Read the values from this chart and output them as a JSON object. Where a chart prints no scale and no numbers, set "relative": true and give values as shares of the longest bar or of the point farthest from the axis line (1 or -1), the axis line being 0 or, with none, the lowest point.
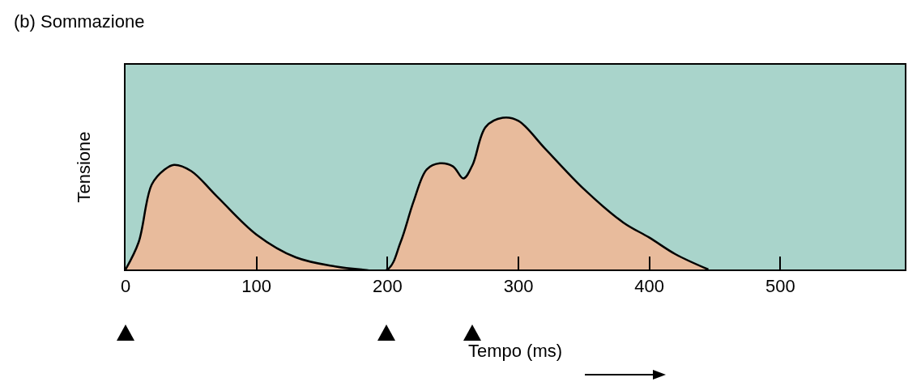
{
  "chart_data": {
    "type": "area",
    "title": "(b) Sommazione",
    "xlabel": "Tempo (ms)",
    "ylabel": "Tensione",
    "relative": true,
    "xlim": [
      0,
      595
    ],
    "xticks": [
      0,
      100,
      200,
      300,
      400,
      500
    ],
    "grid": false,
    "series": [
      {
        "color": "#e8bb9c",
        "x": [
          0,
          10,
          20,
          30,
          37,
          50,
          70,
          100,
          130,
          160,
          180,
          200,
          210,
          220,
          230,
          240,
          250,
          258,
          265,
          275,
          288,
          300,
          320,
          350,
          380,
          400,
          420,
          445
        ],
        "values": [
          0,
          0.18,
          0.56,
          0.66,
          0.69,
          0.65,
          0.48,
          0.23,
          0.08,
          0.02,
          0,
          0,
          0.18,
          0.45,
          0.66,
          0.7,
          0.68,
          0.6,
          0.69,
          0.94,
          1,
          0.98,
          0.8,
          0.53,
          0.31,
          0.21,
          0.1,
          0
        ]
      }
    ]
  }
}
